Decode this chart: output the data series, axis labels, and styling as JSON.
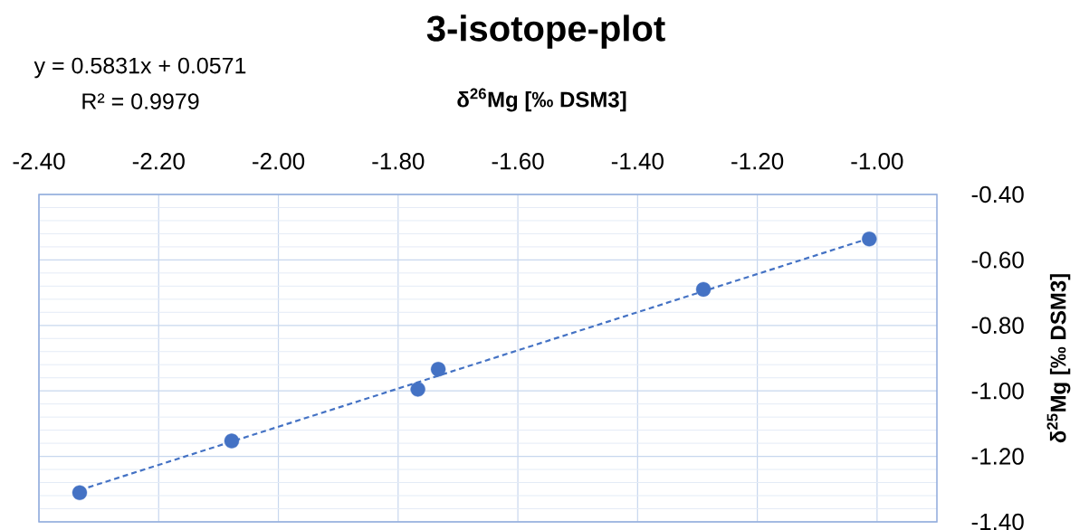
{
  "chart_data": {
    "type": "scatter",
    "title": "3-isotope-plot",
    "xlabel": "δ$^{26}$Mg [‰ DSM3]",
    "ylabel": "δ$^{25}$Mg [‰ DSM3]",
    "annotations": [
      "y = 0.5831x + 0.0571",
      "R² = 0.9979"
    ],
    "marker": "circle",
    "grid": true,
    "xlim": [
      -2.4,
      -0.9
    ],
    "ylim": [
      -1.4,
      -0.4
    ],
    "xticks": [
      {
        "value": -2.4,
        "label": "-2.40"
      },
      {
        "value": -2.2,
        "label": "-2.20"
      },
      {
        "value": -2.0,
        "label": "-2.00"
      },
      {
        "value": -1.8,
        "label": "-1.80"
      },
      {
        "value": -1.6,
        "label": "-1.60"
      },
      {
        "value": -1.4,
        "label": "-1.40"
      },
      {
        "value": -1.2,
        "label": "-1.20"
      },
      {
        "value": -1.0,
        "label": "-1.00"
      }
    ],
    "yticks": [
      {
        "value": -1.4,
        "label": "-1.40"
      },
      {
        "value": -1.2,
        "label": "-1.20"
      },
      {
        "value": -1.0,
        "label": "-1.00"
      },
      {
        "value": -0.8,
        "label": "-0.80"
      },
      {
        "value": -0.6,
        "label": "-0.60"
      },
      {
        "value": -0.4,
        "label": "-0.40"
      }
    ],
    "series": [
      {
        "color": "#4472c4",
        "x": [
          -2.332,
          -2.078,
          -1.767,
          -1.733,
          -1.29,
          -1.013
        ],
        "values": [
          -1.311,
          -1.153,
          -0.995,
          -0.934,
          -0.69,
          -0.536
        ]
      },
      {
        "type": "line",
        "color": "#4472c4",
        "line_style": "dashed",
        "marker": "none",
        "x": [
          -2.332,
          -1.013
        ],
        "values": [
          -1.303,
          -0.534
        ]
      }
    ]
  }
}
